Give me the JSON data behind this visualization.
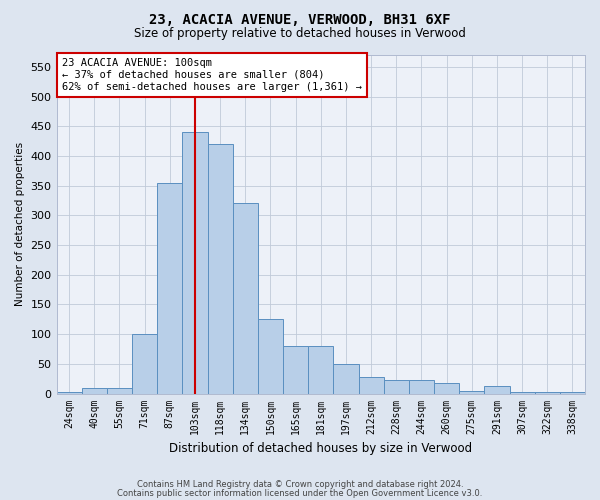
{
  "title1": "23, ACACIA AVENUE, VERWOOD, BH31 6XF",
  "title2": "Size of property relative to detached houses in Verwood",
  "xlabel": "Distribution of detached houses by size in Verwood",
  "ylabel": "Number of detached properties",
  "categories": [
    "24sqm",
    "40sqm",
    "55sqm",
    "71sqm",
    "87sqm",
    "103sqm",
    "118sqm",
    "134sqm",
    "150sqm",
    "165sqm",
    "181sqm",
    "197sqm",
    "212sqm",
    "228sqm",
    "244sqm",
    "260sqm",
    "275sqm",
    "291sqm",
    "307sqm",
    "322sqm",
    "338sqm"
  ],
  "values": [
    2,
    10,
    10,
    100,
    355,
    440,
    420,
    320,
    125,
    80,
    80,
    50,
    28,
    22,
    22,
    18,
    5,
    12,
    2,
    2,
    2
  ],
  "bar_color": "#b8cfe8",
  "bar_edge_color": "#5a8fc0",
  "highlight_index": 5,
  "highlight_line_color": "#cc0000",
  "ylim": [
    0,
    570
  ],
  "yticks": [
    0,
    50,
    100,
    150,
    200,
    250,
    300,
    350,
    400,
    450,
    500,
    550
  ],
  "annotation_text": "23 ACACIA AVENUE: 100sqm\n← 37% of detached houses are smaller (804)\n62% of semi-detached houses are larger (1,361) →",
  "annotation_box_color": "#cc0000",
  "footer1": "Contains HM Land Registry data © Crown copyright and database right 2024.",
  "footer2": "Contains public sector information licensed under the Open Government Licence v3.0.",
  "bg_color": "#dde5f0",
  "plot_bg_color": "#edf1f8"
}
